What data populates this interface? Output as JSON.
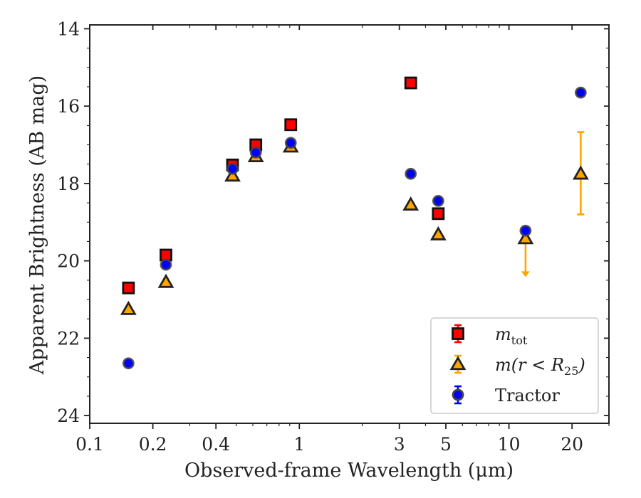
{
  "chart_data": {
    "type": "scatter",
    "xlabel": "Observed-frame Wavelength (μm)",
    "ylabel": "Apparent Brightness (AB mag)",
    "xscale": "log",
    "xlim": [
      0.1,
      30
    ],
    "ylim": [
      24.2,
      13.9
    ],
    "y_inverted": true,
    "xticks": [
      0.1,
      0.2,
      0.4,
      1,
      3,
      5,
      10,
      20
    ],
    "xtick_labels": [
      "0.1",
      "0.2",
      "0.4",
      "1",
      "3",
      "5",
      "10",
      "20"
    ],
    "yticks": [
      14,
      16,
      18,
      20,
      22,
      24
    ],
    "ytick_labels": [
      "14",
      "16",
      "18",
      "20",
      "22",
      "24"
    ],
    "grid": false,
    "legend_position": "lower-right",
    "series": [
      {
        "name": "m_tot",
        "legend_label": "m",
        "legend_sub": "tot",
        "marker": "square",
        "color": "#ff0000",
        "edge_color": "#111111",
        "error_color": "#ff0000",
        "points": [
          {
            "x": 0.153,
            "y": 20.7
          },
          {
            "x": 0.231,
            "y": 19.85
          },
          {
            "x": 0.48,
            "y": 17.52
          },
          {
            "x": 0.62,
            "y": 17.0
          },
          {
            "x": 0.91,
            "y": 16.48
          },
          {
            "x": 3.4,
            "y": 15.4
          },
          {
            "x": 4.6,
            "y": 18.78
          }
        ]
      },
      {
        "name": "m(r < R_25)",
        "legend_label": "m(r < R",
        "legend_sub": "25",
        "legend_tail": ")",
        "marker": "triangle",
        "color": "#ffa500",
        "edge_color": "#222222",
        "error_color": "#ffa500",
        "points": [
          {
            "x": 0.153,
            "y": 21.25
          },
          {
            "x": 0.231,
            "y": 20.55
          },
          {
            "x": 0.48,
            "y": 17.8
          },
          {
            "x": 0.62,
            "y": 17.3
          },
          {
            "x": 0.91,
            "y": 17.05
          },
          {
            "x": 3.4,
            "y": 18.55
          },
          {
            "x": 4.6,
            "y": 19.32
          },
          {
            "x": 12.0,
            "y": 19.42,
            "upper_limit_to": 20.4
          },
          {
            "x": 22.0,
            "y": 17.75,
            "err_low": 16.67,
            "err_high": 18.8
          }
        ]
      },
      {
        "name": "Tractor",
        "legend_label": "Tractor",
        "marker": "circle",
        "color": "#0000ff",
        "edge_color": "#444444",
        "error_color": "#0000ff",
        "points": [
          {
            "x": 0.153,
            "y": 22.65
          },
          {
            "x": 0.231,
            "y": 20.1
          },
          {
            "x": 0.48,
            "y": 17.62
          },
          {
            "x": 0.62,
            "y": 17.2
          },
          {
            "x": 0.91,
            "y": 16.95
          },
          {
            "x": 3.4,
            "y": 17.75
          },
          {
            "x": 4.6,
            "y": 18.45
          },
          {
            "x": 12.0,
            "y": 19.22
          },
          {
            "x": 22.0,
            "y": 15.65
          }
        ]
      }
    ]
  }
}
